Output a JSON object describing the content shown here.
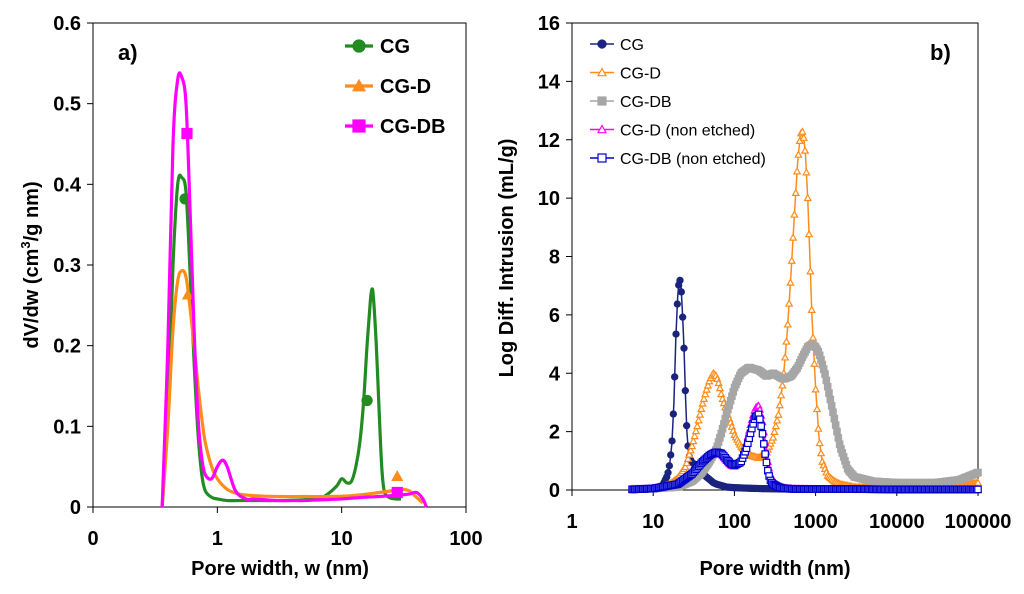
{
  "chart_data": [
    {
      "type": "line",
      "panel_label": "a)",
      "xlabel": "Pore width, w (nm)",
      "ylabel_main": "dV/dw (cm",
      "ylabel_sup": "3",
      "ylabel_tail": "/g nm)",
      "xscale": "log",
      "xlim": [
        0.1,
        100
      ],
      "ylim": [
        0,
        0.6
      ],
      "x_tick_values": [
        0.1,
        1,
        10,
        100
      ],
      "x_tick_labels": [
        "0",
        "1",
        "10",
        "100"
      ],
      "y_tick_values": [
        0,
        0.1,
        0.2,
        0.3,
        0.4,
        0.5,
        0.6
      ],
      "y_tick_labels": [
        "0",
        "0.1",
        "0.2",
        "0.3",
        "0.4",
        "0.5",
        "0.6"
      ],
      "legend_position": "top-right",
      "series": [
        {
          "name": "CG",
          "color": "#228B22",
          "marker": "circle",
          "x": [
            0.36,
            0.4,
            0.44,
            0.48,
            0.52,
            0.56,
            0.6,
            0.65,
            0.7,
            0.75,
            0.8,
            0.9,
            1.0,
            1.2,
            1.5,
            2,
            3,
            5,
            7,
            9,
            10,
            11,
            12,
            13,
            14,
            15,
            16,
            17,
            17.5,
            18,
            19,
            20,
            21,
            22,
            24,
            27,
            30
          ],
          "y": [
            0,
            0.12,
            0.3,
            0.4,
            0.408,
            0.39,
            0.3,
            0.18,
            0.09,
            0.04,
            0.02,
            0.012,
            0.01,
            0.008,
            0.008,
            0.008,
            0.008,
            0.009,
            0.012,
            0.025,
            0.035,
            0.03,
            0.032,
            0.05,
            0.08,
            0.13,
            0.2,
            0.255,
            0.27,
            0.26,
            0.2,
            0.12,
            0.05,
            0.02,
            0.012,
            0.01,
            0.01
          ],
          "marker_points": [
            [
              0.55,
              0.382
            ],
            [
              16,
              0.132
            ]
          ]
        },
        {
          "name": "CG-D",
          "color": "#FF8C1A",
          "marker": "triangle",
          "x": [
            0.36,
            0.4,
            0.44,
            0.48,
            0.52,
            0.56,
            0.6,
            0.65,
            0.7,
            0.75,
            0.8,
            0.9,
            1.0,
            1.2,
            1.5,
            2,
            3,
            5,
            8,
            12,
            18,
            25,
            30,
            35,
            40,
            45
          ],
          "y": [
            0,
            0.1,
            0.22,
            0.28,
            0.293,
            0.285,
            0.25,
            0.2,
            0.15,
            0.11,
            0.08,
            0.05,
            0.035,
            0.022,
            0.016,
            0.014,
            0.013,
            0.013,
            0.013,
            0.014,
            0.017,
            0.02,
            0.022,
            0.02,
            0.012,
            0.005
          ],
          "marker_points": [
            [
              0.58,
              0.263
            ],
            [
              28,
              0.038
            ]
          ]
        },
        {
          "name": "CG-DB",
          "color": "#FF00FF",
          "marker": "square",
          "x": [
            0.36,
            0.4,
            0.44,
            0.48,
            0.52,
            0.56,
            0.6,
            0.65,
            0.7,
            0.75,
            0.8,
            0.9,
            1.0,
            1.1,
            1.2,
            1.4,
            1.7,
            2,
            3,
            4,
            5,
            7,
            10,
            15,
            20,
            25,
            30,
            35,
            40,
            45,
            48
          ],
          "y": [
            0,
            0.2,
            0.45,
            0.53,
            0.532,
            0.5,
            0.38,
            0.22,
            0.11,
            0.06,
            0.04,
            0.035,
            0.05,
            0.058,
            0.05,
            0.02,
            0.01,
            0.01,
            0.008,
            0.008,
            0.008,
            0.009,
            0.01,
            0.012,
            0.013,
            0.014,
            0.015,
            0.016,
            0.018,
            0.01,
            0.0
          ],
          "marker_points": [
            [
              0.57,
              0.463
            ],
            [
              28,
              0.018
            ]
          ]
        }
      ]
    },
    {
      "type": "line",
      "panel_label": "b)",
      "xlabel": "Pore width (nm)",
      "ylabel": "Log Diff. Intrusion (mL/g)",
      "xscale": "log",
      "xlim": [
        1,
        100000
      ],
      "ylim": [
        0,
        16
      ],
      "x_tick_values": [
        1,
        10,
        100,
        1000,
        10000,
        100000
      ],
      "x_tick_labels": [
        "1",
        "10",
        "100",
        "1000",
        "10000",
        "100000"
      ],
      "y_tick_values": [
        0,
        2,
        4,
        6,
        8,
        10,
        12,
        14,
        16
      ],
      "y_tick_labels": [
        "0",
        "2",
        "4",
        "6",
        "8",
        "10",
        "12",
        "14",
        "16"
      ],
      "legend_position": "top-left",
      "series": [
        {
          "name": "CG",
          "color": "#1A237E",
          "marker": "circle-filled",
          "x": [
            5.5,
            7,
            9,
            11,
            13,
            15,
            16,
            17,
            18,
            19,
            20,
            21,
            22,
            23,
            24,
            25,
            26,
            27,
            28,
            30,
            33,
            36,
            40,
            45,
            50,
            55,
            60,
            70,
            80,
            100,
            150,
            200,
            300,
            500,
            1000,
            3000,
            10000,
            30000,
            100000
          ],
          "y": [
            0.05,
            0.05,
            0.06,
            0.08,
            0.15,
            0.5,
            0.9,
            1.6,
            3.0,
            5.2,
            6.6,
            7.3,
            7.0,
            6.0,
            4.8,
            3.2,
            2.0,
            1.4,
            1.1,
            0.95,
            0.85,
            0.75,
            0.6,
            0.45,
            0.35,
            0.25,
            0.2,
            0.15,
            0.1,
            0.08,
            0.06,
            0.05,
            0.04,
            0.03,
            0.03,
            0.02,
            0.02,
            0.02,
            0.02
          ]
        },
        {
          "name": "CG-D",
          "color": "#FF8C1A",
          "marker": "triangle-open",
          "x": [
            5.5,
            8,
            10,
            13,
            16,
            20,
            25,
            30,
            35,
            40,
            45,
            50,
            55,
            60,
            65,
            70,
            80,
            90,
            100,
            120,
            150,
            200,
            250,
            300,
            350,
            400,
            450,
            500,
            550,
            600,
            650,
            700,
            750,
            800,
            850,
            900,
            1000,
            1100,
            1200,
            1400,
            1700,
            2000,
            3000,
            5000,
            10000,
            30000,
            100000
          ],
          "y": [
            0.02,
            0.03,
            0.05,
            0.1,
            0.2,
            0.4,
            0.8,
            1.5,
            2.2,
            2.9,
            3.4,
            3.8,
            4.0,
            3.9,
            3.6,
            3.2,
            2.7,
            2.3,
            1.9,
            1.5,
            1.2,
            1.1,
            1.3,
            1.8,
            2.6,
            3.8,
            5.5,
            7.5,
            9.5,
            11.2,
            12.2,
            12.3,
            11.5,
            10.0,
            8.0,
            6.0,
            3.5,
            1.8,
            1.0,
            0.5,
            0.3,
            0.2,
            0.1,
            0.08,
            0.06,
            0.05,
            0.25
          ]
        },
        {
          "name": "CG-DB",
          "color": "#A6A6A6",
          "marker": "square-filled",
          "x": [
            5.5,
            10,
            20,
            30,
            40,
            50,
            60,
            70,
            80,
            100,
            120,
            150,
            200,
            250,
            300,
            400,
            500,
            600,
            700,
            800,
            900,
            1000,
            1100,
            1300,
            1600,
            2000,
            2500,
            3000,
            5000,
            10000,
            30000,
            60000,
            100000
          ],
          "y": [
            0.03,
            0.05,
            0.1,
            0.3,
            0.6,
            1.0,
            1.4,
            2.0,
            2.6,
            3.5,
            4.0,
            4.2,
            4.1,
            3.9,
            4.0,
            3.8,
            3.9,
            4.2,
            4.6,
            4.9,
            5.0,
            4.9,
            4.7,
            4.0,
            2.8,
            1.5,
            0.7,
            0.45,
            0.3,
            0.25,
            0.25,
            0.35,
            0.6
          ]
        },
        {
          "name": "CG-D (non etched)",
          "color": "#FF00FF",
          "marker": "triangle-open",
          "x": [
            5.5,
            10,
            20,
            30,
            40,
            50,
            60,
            70,
            80,
            90,
            100,
            120,
            140,
            160,
            180,
            200,
            220,
            240,
            260,
            280,
            300,
            350,
            400,
            500,
            700,
            1000,
            3000,
            10000,
            100000
          ],
          "y": [
            0.02,
            0.05,
            0.2,
            0.6,
            1.0,
            1.25,
            1.3,
            1.2,
            1.0,
            0.85,
            0.8,
            1.0,
            1.6,
            2.3,
            2.8,
            2.9,
            2.4,
            1.6,
            0.9,
            0.5,
            0.3,
            0.15,
            0.08,
            0.05,
            0.04,
            0.03,
            0.03,
            0.03,
            0.03
          ]
        },
        {
          "name": "CG-DB (non etched)",
          "color": "#0000CC",
          "marker": "square-open",
          "x": [
            5.5,
            10,
            20,
            30,
            40,
            50,
            60,
            70,
            80,
            90,
            100,
            120,
            140,
            160,
            180,
            200,
            220,
            240,
            260,
            280,
            300,
            350,
            400,
            500,
            700,
            1000,
            3000,
            10000,
            100000
          ],
          "y": [
            0.02,
            0.05,
            0.2,
            0.55,
            0.95,
            1.2,
            1.3,
            1.25,
            1.05,
            0.9,
            0.85,
            0.95,
            1.4,
            2.0,
            2.5,
            2.6,
            2.0,
            1.2,
            0.6,
            0.3,
            0.2,
            0.1,
            0.06,
            0.04,
            0.03,
            0.03,
            0.03,
            0.02,
            0.02
          ]
        }
      ]
    }
  ]
}
